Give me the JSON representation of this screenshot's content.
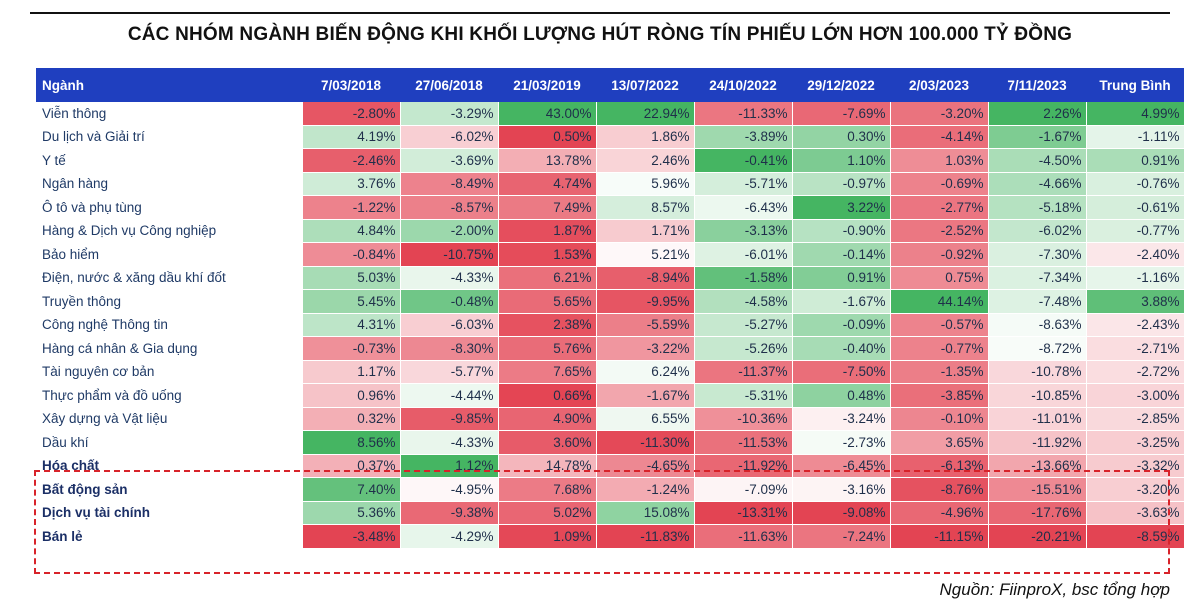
{
  "title": "CÁC NHÓM NGÀNH BIẾN ĐỘNG KHI KHỐI LƯỢNG HÚT RÒNG TÍN PHIẾU LỚN HƠN 100.000 TỶ ĐỒNG",
  "header": [
    "Ngành",
    "7/03/2018",
    "27/06/2018",
    "21/03/2019",
    "13/07/2022",
    "24/10/2022",
    "29/12/2022",
    "2/03/2023",
    "7/11/2023",
    "Trung Bình"
  ],
  "rows": [
    {
      "name": "Viễn thông",
      "values": [
        -2.8,
        -3.29,
        43.0,
        22.94,
        -11.33,
        -7.69,
        -3.2,
        2.26,
        4.99
      ],
      "highlight": false
    },
    {
      "name": "Du lịch và Giải trí",
      "values": [
        4.19,
        -6.02,
        0.5,
        1.86,
        -3.89,
        0.3,
        -4.14,
        -1.67,
        -1.11
      ],
      "highlight": false
    },
    {
      "name": "Y tế",
      "values": [
        -2.46,
        -3.69,
        13.78,
        2.46,
        -0.41,
        1.1,
        1.03,
        -4.5,
        0.91
      ],
      "highlight": false
    },
    {
      "name": "Ngân hàng",
      "values": [
        3.76,
        -8.49,
        4.74,
        5.96,
        -5.71,
        -0.97,
        -0.69,
        -4.66,
        -0.76
      ],
      "highlight": false
    },
    {
      "name": "Ô tô và phụ tùng",
      "values": [
        -1.22,
        -8.57,
        7.49,
        8.57,
        -6.43,
        3.22,
        -2.77,
        -5.18,
        -0.61
      ],
      "highlight": false
    },
    {
      "name": "Hàng & Dịch vụ Công nghiệp",
      "values": [
        4.84,
        -2.0,
        1.87,
        1.71,
        -3.13,
        -0.9,
        -2.52,
        -6.02,
        -0.77
      ],
      "highlight": false
    },
    {
      "name": "Bảo hiểm",
      "values": [
        -0.84,
        -10.75,
        1.53,
        5.21,
        -6.01,
        -0.14,
        -0.92,
        -7.3,
        -2.4
      ],
      "highlight": false
    },
    {
      "name": "Điện, nước & xăng dầu khí đốt",
      "values": [
        5.03,
        -4.33,
        6.21,
        -8.94,
        -1.58,
        0.91,
        0.75,
        -7.34,
        -1.16
      ],
      "highlight": false
    },
    {
      "name": "Truyền thông",
      "values": [
        5.45,
        -0.48,
        5.65,
        -9.95,
        -4.58,
        -1.67,
        44.14,
        -7.48,
        3.88
      ],
      "highlight": false
    },
    {
      "name": "Công nghệ Thông tin",
      "values": [
        4.31,
        -6.03,
        2.38,
        -5.59,
        -5.27,
        -0.09,
        -0.57,
        -8.63,
        -2.43
      ],
      "highlight": false
    },
    {
      "name": "Hàng cá nhân & Gia dụng",
      "values": [
        -0.73,
        -8.3,
        5.76,
        -3.22,
        -5.26,
        -0.4,
        -0.77,
        -8.72,
        -2.71
      ],
      "highlight": false
    },
    {
      "name": "Tài nguyên cơ bản",
      "values": [
        1.17,
        -5.77,
        7.65,
        6.24,
        -11.37,
        -7.5,
        -1.35,
        -10.78,
        -2.72
      ],
      "highlight": false
    },
    {
      "name": "Thực phẩm và đồ uống",
      "values": [
        0.96,
        -4.44,
        0.66,
        -1.67,
        -5.31,
        0.48,
        -3.85,
        -10.85,
        -3.0
      ],
      "highlight": false
    },
    {
      "name": "Xây dựng và Vật liệu",
      "values": [
        0.32,
        -9.85,
        4.9,
        6.55,
        -10.36,
        -3.24,
        -0.1,
        -11.01,
        -2.85
      ],
      "highlight": false
    },
    {
      "name": "Dầu khí",
      "values": [
        8.56,
        -4.33,
        3.6,
        -11.3,
        -11.53,
        -2.73,
        3.65,
        -11.92,
        -3.25
      ],
      "highlight": false
    },
    {
      "name": "Hóa chất",
      "values": [
        0.37,
        1.12,
        14.78,
        -4.65,
        -11.92,
        -6.45,
        -6.13,
        -13.66,
        -3.32
      ],
      "highlight": true
    },
    {
      "name": "Bất động sản",
      "values": [
        7.4,
        -4.95,
        7.68,
        -1.24,
        -7.09,
        -3.16,
        -8.76,
        -15.51,
        -3.2
      ],
      "highlight": true
    },
    {
      "name": "Dịch vụ tài chính",
      "values": [
        5.36,
        -9.38,
        5.02,
        15.08,
        -13.31,
        -9.08,
        -4.96,
        -17.76,
        -3.63
      ],
      "highlight": true
    },
    {
      "name": "Bán lẻ",
      "values": [
        -3.48,
        -4.29,
        1.09,
        -11.83,
        -11.63,
        -7.24,
        -11.15,
        -20.21,
        -8.59
      ],
      "highlight": true
    }
  ],
  "source": "Nguồn: FiinproX, bsc tổng hợp",
  "colors": {
    "header_bg": "#1f3fbf",
    "positive": "#3bb15a",
    "negative": "#e23a4a",
    "neutral": "#ffffff",
    "highlight_border": "#d8232a"
  }
}
